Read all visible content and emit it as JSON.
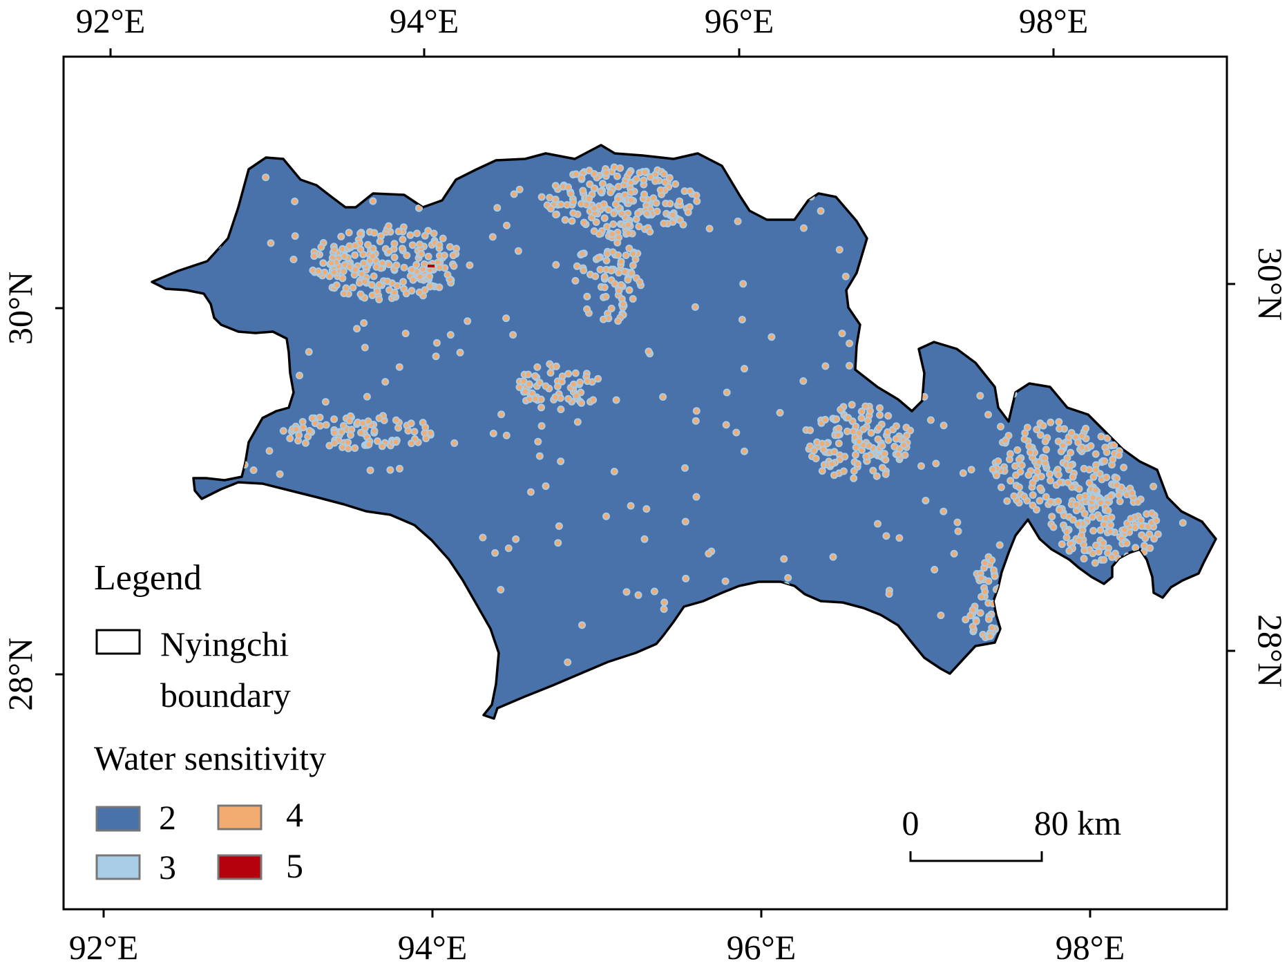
{
  "map": {
    "top_longitude_labels": [
      "92°E",
      "94°E",
      "96°E",
      "98°E"
    ],
    "bottom_longitude_labels": [
      "92°E",
      "94°E",
      "96°E",
      "98°E"
    ],
    "left_latitude_labels": [
      "30°N",
      "28°N"
    ],
    "right_latitude_labels": [
      "30°N",
      "28°N"
    ],
    "region_colors": {
      "class2": "#4a72aa",
      "class3": "#a9cde6",
      "class4": "#f2ac72",
      "class5": "#b5000e",
      "boundary": "#000000"
    }
  },
  "legend": {
    "title": "Legend",
    "boundary_label_line1": "Nyingchi",
    "boundary_label_line2": "boundary",
    "sensitivity_title": "Water sensitivity",
    "classes": [
      {
        "label": "2",
        "color": "#4a72aa"
      },
      {
        "label": "3",
        "color": "#a9cde6"
      },
      {
        "label": "4",
        "color": "#f2ac72"
      },
      {
        "label": "5",
        "color": "#b5000e"
      }
    ]
  },
  "scale_bar": {
    "start_label": "0",
    "end_label": "80 km"
  }
}
